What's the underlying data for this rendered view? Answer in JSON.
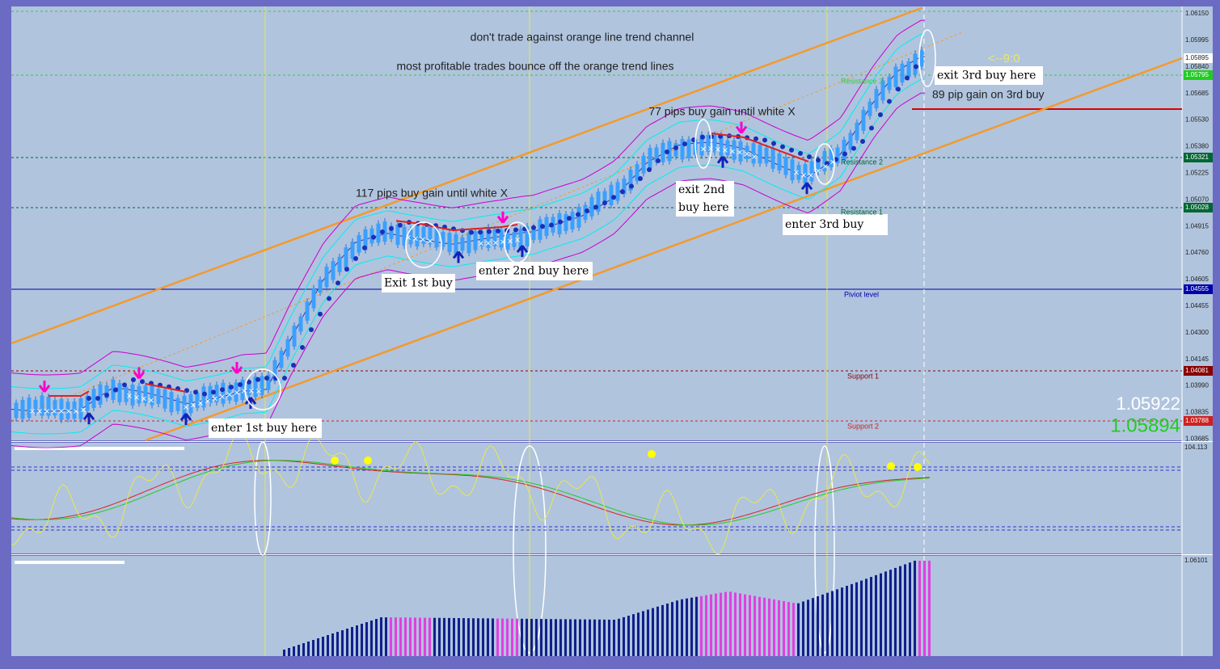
{
  "annotations": {
    "channel_note": "don't trade against orange line trend channel",
    "bounce_note": "most profitable trades bounce off the orange trend lines",
    "gain_1": "117 pips buy gain until white X",
    "gain_2": "77 pips buy gain until white X",
    "gain_3": "89 pip gain on 3rd buy",
    "timer": "<--9:0"
  },
  "callouts": {
    "enter_1": "enter 1st buy here",
    "exit_1": "Exit 1st buy",
    "enter_2": "enter 2nd buy here",
    "exit_2": [
      "exit 2nd",
      "buy here"
    ],
    "enter_3": "enter 3rd buy",
    "exit_3": "exit 3rd buy here"
  },
  "levels": [
    "Resistance 3",
    "Resistance 2",
    "Resistance 1",
    "Piviot level",
    "Support 1",
    "Support 2"
  ],
  "price_axis": [
    "1.06150",
    "1.05995",
    "1.05840",
    "1.05685",
    "1.05530",
    "1.05380",
    "1.05225",
    "1.05070",
    "1.04915",
    "1.04760",
    "1.04605",
    "1.04455",
    "1.04300",
    "1.04145",
    "1.03990",
    "1.03835",
    "1.03685"
  ],
  "level_prices": [
    "1.05895",
    "1.05795",
    "1.05321",
    "1.05028",
    "1.04555",
    "1.04081",
    "1.03788"
  ],
  "quote": {
    "bid": "1.05922",
    "ask": "1.05894"
  },
  "indicator_axis": "104.113",
  "histogram_axis": "1.06101"
}
